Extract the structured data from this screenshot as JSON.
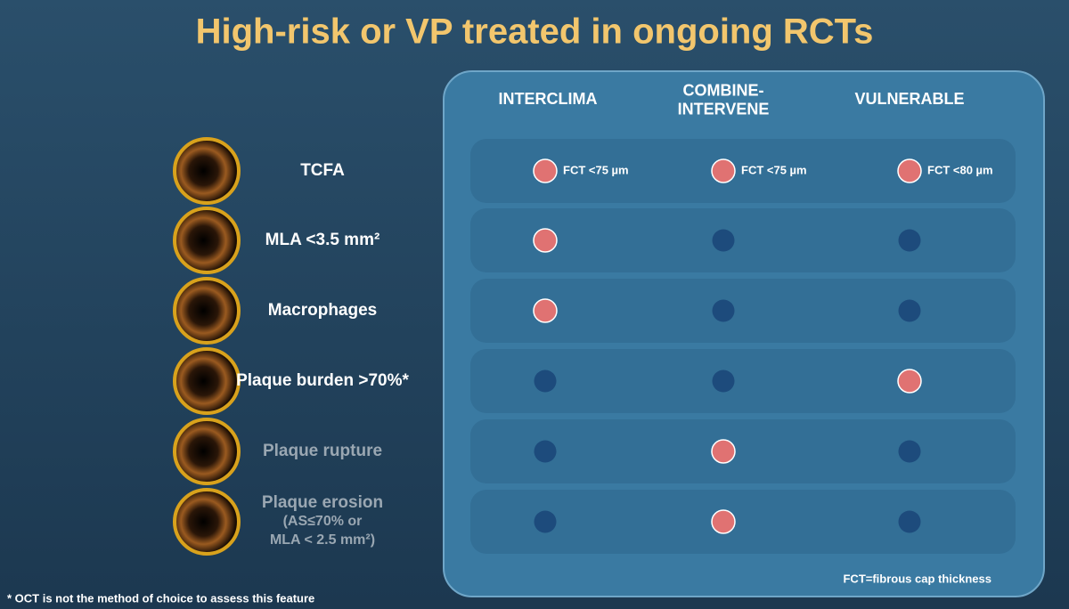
{
  "title": "High-risk or VP treated in ongoing RCTs",
  "columns": [
    {
      "lines": [
        "INTERCLIMA"
      ]
    },
    {
      "lines": [
        "COMBINE-",
        "INTERVENE"
      ]
    },
    {
      "lines": [
        "VULNERABLE"
      ]
    }
  ],
  "rows": [
    {
      "lines": [
        "TCFA"
      ],
      "dimmed": false,
      "cells": [
        {
          "included": true,
          "note": "FCT <75 µm"
        },
        {
          "included": true,
          "note": "FCT <75 µm"
        },
        {
          "included": true,
          "note": "FCT <80 µm"
        }
      ]
    },
    {
      "lines": [
        "MLA <3.5 mm²"
      ],
      "dimmed": false,
      "cells": [
        {
          "included": true
        },
        {
          "included": false
        },
        {
          "included": false
        }
      ]
    },
    {
      "lines": [
        "Macrophages"
      ],
      "dimmed": false,
      "cells": [
        {
          "included": true
        },
        {
          "included": false
        },
        {
          "included": false
        }
      ]
    },
    {
      "lines": [
        "Plaque burden >70%*"
      ],
      "dimmed": false,
      "cells": [
        {
          "included": false
        },
        {
          "included": false
        },
        {
          "included": true
        }
      ]
    },
    {
      "lines": [
        "Plaque rupture"
      ],
      "dimmed": true,
      "cells": [
        {
          "included": false
        },
        {
          "included": true
        },
        {
          "included": false
        }
      ]
    },
    {
      "lines": [
        "Plaque erosion",
        "(AS≤70% or",
        "MLA < 2.5 mm²)"
      ],
      "dimmed": true,
      "cells": [
        {
          "included": false
        },
        {
          "included": true
        },
        {
          "included": false
        }
      ]
    }
  ],
  "legend_note": "FCT=fibrous cap thickness",
  "footnote": "* OCT is not the method of choice to assess this feature"
}
